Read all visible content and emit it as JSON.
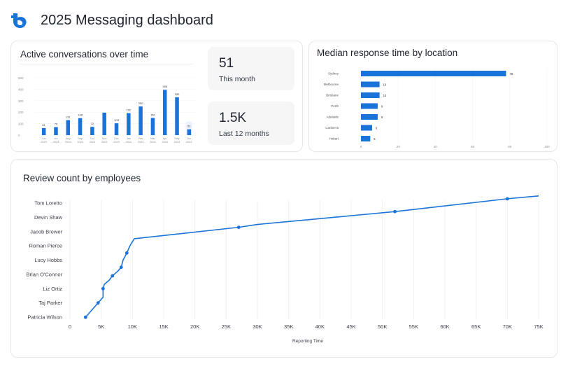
{
  "header": {
    "title": "2025 Messaging dashboard",
    "logo": "brand-b-logo",
    "brand_color": "#1a73d9"
  },
  "cards": {
    "active": {
      "title": "Active conversations over time",
      "stats": [
        {
          "value": "51",
          "label": "This month"
        },
        {
          "value": "1.5K",
          "label": "Last 12 months"
        }
      ]
    },
    "median": {
      "title": "Median response time by location"
    },
    "review": {
      "title": "Review count by employees"
    }
  },
  "chart_data": [
    {
      "type": "bar",
      "title": "Active conversations over time",
      "categories": [
        [
          "Jun",
          "2023"
        ],
        [
          "Jul",
          "2023"
        ],
        [
          "Aug",
          "2023"
        ],
        [
          "Sep",
          "2023"
        ],
        [
          "Oct",
          "2023"
        ],
        [
          "Nov",
          "2023"
        ],
        [
          "Dec",
          "2023"
        ],
        [
          "Jan",
          "2024"
        ],
        [
          "Feb",
          "2024"
        ],
        [
          "Mar",
          "2024"
        ],
        [
          "Apr",
          "2024"
        ],
        [
          "May",
          "2024"
        ],
        [
          "Jun",
          "2024"
        ]
      ],
      "values": [
        61,
        70,
        131,
        148,
        72,
        196,
        103,
        192,
        250,
        150,
        395,
        330,
        51
      ],
      "value_labels": [
        "61",
        "70",
        "131",
        "148",
        "72",
        "",
        "103",
        "192",
        "250",
        "150",
        "395",
        "330",
        "51"
      ],
      "highlight_last": true,
      "yticks": [
        0,
        100,
        200,
        300,
        400,
        500
      ],
      "ylim": [
        0,
        500
      ],
      "colors": {
        "bar": "#1a73d9",
        "highlight": "#a9c7ec"
      }
    },
    {
      "type": "bar",
      "orientation": "horizontal",
      "title": "Median response time by location",
      "categories": [
        "Sydney",
        "Melbourne",
        "Brisbane",
        "Perth",
        "Adelaide",
        "Canberra",
        "Hobart"
      ],
      "values": [
        78,
        10,
        10,
        9,
        9,
        6,
        5
      ],
      "xticks": [
        0,
        20,
        40,
        60,
        80,
        100
      ],
      "xlim": [
        0,
        100
      ],
      "colors": {
        "bar": "#1a73d9"
      }
    },
    {
      "type": "line",
      "title": "Review count by employees",
      "xlabel": "Reporting Time",
      "categories": [
        "Patricia Wilson",
        "Taj Parker",
        "Liz Ortiz",
        "Brian O'Connor",
        "Lucy Hobbs",
        "Roman Pierce",
        "Jacob Brewer",
        "Devin Shaw",
        "Tom Loretto"
      ],
      "x": [
        2500,
        4500,
        5300,
        5300,
        5500,
        6300,
        6800,
        7600,
        8200,
        8500,
        9100,
        9600,
        10000,
        10300,
        27000,
        30000,
        52000,
        54000,
        70000,
        75000
      ],
      "y_index": [
        0,
        1,
        1.4,
        2.0,
        2.3,
        2.6,
        2.9,
        3.2,
        3.5,
        4.0,
        4.5,
        5.0,
        5.3,
        5.5,
        6.3,
        6.5,
        7.4,
        7.5,
        8.3,
        8.5
      ],
      "markers": [
        0,
        1,
        3,
        6,
        8,
        10,
        14,
        16,
        18
      ],
      "xticks": [
        "0",
        "5K",
        "10K",
        "15K",
        "20K",
        "25K",
        "30K",
        "35K",
        "40K",
        "45K",
        "50K",
        "55K",
        "60K",
        "65K",
        "70K",
        "75K"
      ],
      "xlim": [
        0,
        75000
      ],
      "colors": {
        "line": "#1a73d9"
      }
    }
  ]
}
